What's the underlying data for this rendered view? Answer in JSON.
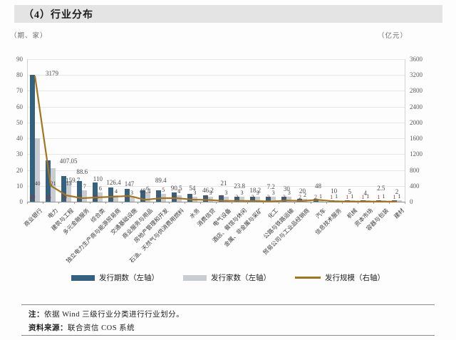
{
  "title": "（4）行业分布",
  "left_axis_unit": "（期、家）",
  "right_axis_unit": "（亿元）",
  "legend": {
    "items": [
      {
        "label": "发行期数（左轴）",
        "type": "bar",
        "color": "#33617f"
      },
      {
        "label": "发行家数（左轴）",
        "type": "bar",
        "color": "#c9cdd1"
      },
      {
        "label": "发行规模（右轴）",
        "type": "line",
        "color": "#a3751f"
      }
    ]
  },
  "footer": {
    "note_prefix": "注：",
    "note_text": "依据 Wind 三级行业分类进行行业划分。",
    "source_prefix": "资料来源：",
    "source_text": "联合资信 COS 系统"
  },
  "chart_data": {
    "type": "bar",
    "subtype": "dual-axis bar + line combo",
    "title": "（4）行业分布",
    "xlabel": "",
    "ylabel_left": "（期、家）",
    "ylabel_right": "（亿元）",
    "grid": true,
    "legend_position": "bottom",
    "left_axis": {
      "min": 0,
      "max": 90,
      "step": 10
    },
    "right_axis": {
      "min": 0,
      "max": 3600,
      "step": 400
    },
    "categories": [
      "商业银行",
      "电力",
      "建筑与工程",
      "多元金融服务",
      "综合类",
      "独立电力生产商与能源贸易商",
      "交通基础设施",
      "商业服务与用品",
      "房地产管理和开发",
      "石油、天然气与供消费用燃料",
      "水务",
      "消费信贷",
      "电气设备",
      "酒店、餐馆与休闲",
      "金属、非金属与采矿",
      "化工",
      "公路与铁路运输",
      "贸易公司与工业品经销商",
      "汽车",
      "信息技术服务",
      "机械",
      "资本市场",
      "容器与包装",
      "建材"
    ],
    "series": [
      {
        "name": "发行期数（左轴）",
        "type": "bar",
        "axis": "left",
        "color": "#33617f",
        "label_color": "#943634",
        "values": [
          80,
          26,
          16,
          13,
          12,
          9,
          8,
          7,
          7,
          6,
          5,
          4,
          4,
          3,
          3,
          3,
          3,
          2,
          2,
          1,
          1,
          1,
          1,
          1
        ]
      },
      {
        "name": "发行家数（左轴）",
        "type": "bar",
        "axis": "left",
        "color": "#c9cdd1",
        "label_color": "#404040",
        "values": [
          40,
          21,
          13,
          7,
          6,
          4,
          3,
          6,
          5,
          4,
          3,
          3,
          3,
          3,
          3,
          3,
          3,
          2,
          1,
          1,
          1,
          1,
          1,
          1
        ]
      },
      {
        "name": "发行规模（右轴）",
        "type": "line",
        "axis": "right",
        "color": "#a3751f",
        "label_color": "#4a4a4a",
        "values": [
          3179,
          407.05,
          159.7,
          88.6,
          110,
          126.4,
          147,
          48.4,
          89.4,
          90.5,
          54,
          46.2,
          21,
          23.8,
          18.2,
          7.2,
          30,
          20,
          48,
          10,
          5,
          4,
          2.5,
          2
        ]
      }
    ]
  }
}
